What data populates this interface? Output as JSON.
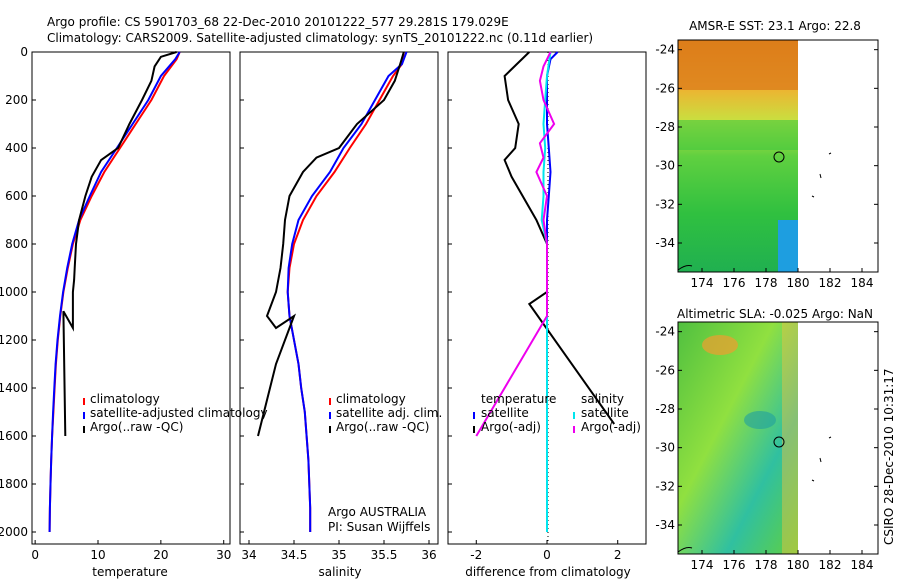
{
  "header": {
    "line1": "Argo profile: CS 5901703_68 22-Dec-2010 20101222_577 29.281S 179.029E",
    "line2": "Climatology: CARS2009. Satellite-adjusted climatology: synTS_20101222.nc (0.11d earlier)"
  },
  "colors": {
    "climatology": "#ff0000",
    "satellite": "#0000ff",
    "argo": "#000000",
    "salinity_satellite": "#00e5ee",
    "salinity_argo": "#ee00ee"
  },
  "side_text": "CSIRO 28-Dec-2010 10:31:17",
  "credit": {
    "line1": "Argo AUSTRALIA",
    "line2": "PI: Susan Wijffels"
  },
  "chart_data": [
    {
      "type": "line",
      "xlabel": "temperature",
      "xlim": [
        -0.5,
        31
      ],
      "ylim": [
        2050,
        0
      ],
      "xticks": [
        0,
        10,
        20,
        30
      ],
      "yticks": [
        0,
        200,
        400,
        600,
        800,
        1000,
        1200,
        1400,
        1600,
        1800,
        2000
      ],
      "legend": {
        "position": "lower-right",
        "entries": [
          "climatology",
          "satellite-adjusted climatology",
          "Argo(..raw -QC)"
        ]
      },
      "series": [
        {
          "name": "climatology",
          "color": "#ff0000",
          "points": [
            [
              23,
              0
            ],
            [
              22.5,
              30
            ],
            [
              20.5,
              100
            ],
            [
              18.5,
              200
            ],
            [
              16,
              300
            ],
            [
              13.5,
              400
            ],
            [
              11,
              500
            ],
            [
              9,
              600
            ],
            [
              7.2,
              700
            ],
            [
              6,
              800
            ],
            [
              5.2,
              900
            ],
            [
              4.5,
              1000
            ],
            [
              4,
              1100
            ],
            [
              3.6,
              1200
            ],
            [
              3.3,
              1300
            ],
            [
              3.1,
              1400
            ],
            [
              2.9,
              1500
            ],
            [
              2.7,
              1600
            ],
            [
              2.55,
              1700
            ],
            [
              2.45,
              1800
            ],
            [
              2.35,
              1900
            ],
            [
              2.3,
              2000
            ]
          ]
        },
        {
          "name": "satellite-adjusted climatology",
          "color": "#0000ff",
          "points": [
            [
              23,
              0
            ],
            [
              22.3,
              30
            ],
            [
              20,
              100
            ],
            [
              18,
              200
            ],
            [
              15.5,
              300
            ],
            [
              13,
              400
            ],
            [
              10.5,
              500
            ],
            [
              8.7,
              600
            ],
            [
              7,
              700
            ],
            [
              5.9,
              800
            ],
            [
              5.1,
              900
            ],
            [
              4.45,
              1000
            ],
            [
              3.95,
              1100
            ],
            [
              3.55,
              1200
            ],
            [
              3.25,
              1300
            ],
            [
              3.05,
              1400
            ],
            [
              2.85,
              1500
            ],
            [
              2.7,
              1600
            ],
            [
              2.55,
              1700
            ],
            [
              2.45,
              1800
            ],
            [
              2.35,
              1900
            ],
            [
              2.3,
              2000
            ]
          ]
        },
        {
          "name": "Argo(..raw -QC)",
          "color": "#000000",
          "points": [
            [
              22.5,
              0
            ],
            [
              20,
              20
            ],
            [
              19,
              60
            ],
            [
              18.5,
              120
            ],
            [
              17,
              200
            ],
            [
              15,
              300
            ],
            [
              13.2,
              400
            ],
            [
              10.5,
              450
            ],
            [
              9,
              520
            ],
            [
              8,
              600
            ],
            [
              7,
              700
            ],
            [
              6.5,
              800
            ],
            [
              6.3,
              900
            ],
            [
              6.2,
              950
            ],
            [
              6,
              1000
            ],
            [
              6,
              1150
            ],
            [
              4.5,
              1080
            ],
            [
              4.8,
              1600
            ]
          ]
        }
      ]
    },
    {
      "type": "line",
      "xlabel": "salinity",
      "xlim": [
        33.9,
        36.1
      ],
      "ylim": [
        2050,
        0
      ],
      "xticks": [
        34,
        34.5,
        35,
        35.5,
        36
      ],
      "legend": {
        "position": "lower-right",
        "entries": [
          "climatology",
          "satellite adj. clim.",
          "Argo(..raw -QC)"
        ]
      },
      "series": [
        {
          "name": "climatology",
          "color": "#ff0000",
          "points": [
            [
              35.72,
              0
            ],
            [
              35.7,
              50
            ],
            [
              35.6,
              100
            ],
            [
              35.45,
              200
            ],
            [
              35.3,
              300
            ],
            [
              35.12,
              400
            ],
            [
              34.95,
              500
            ],
            [
              34.75,
              600
            ],
            [
              34.6,
              700
            ],
            [
              34.5,
              800
            ],
            [
              34.45,
              900
            ],
            [
              34.43,
              1000
            ],
            [
              34.45,
              1100
            ],
            [
              34.5,
              1200
            ],
            [
              34.55,
              1300
            ],
            [
              34.58,
              1400
            ],
            [
              34.62,
              1500
            ],
            [
              34.64,
              1600
            ],
            [
              34.66,
              1700
            ],
            [
              34.67,
              1800
            ],
            [
              34.68,
              1900
            ],
            [
              34.68,
              2000
            ]
          ]
        },
        {
          "name": "satellite adj. clim.",
          "color": "#0000ff",
          "points": [
            [
              35.75,
              0
            ],
            [
              35.7,
              50
            ],
            [
              35.55,
              100
            ],
            [
              35.4,
              200
            ],
            [
              35.25,
              300
            ],
            [
              35.05,
              400
            ],
            [
              34.9,
              500
            ],
            [
              34.7,
              600
            ],
            [
              34.55,
              700
            ],
            [
              34.48,
              800
            ],
            [
              34.44,
              900
            ],
            [
              34.43,
              1000
            ],
            [
              34.45,
              1100
            ],
            [
              34.5,
              1200
            ],
            [
              34.55,
              1300
            ],
            [
              34.58,
              1400
            ],
            [
              34.62,
              1500
            ],
            [
              34.64,
              1600
            ],
            [
              34.66,
              1700
            ],
            [
              34.67,
              1800
            ],
            [
              34.68,
              1900
            ],
            [
              34.68,
              2000
            ]
          ]
        },
        {
          "name": "Argo(..raw -QC)",
          "color": "#000000",
          "points": [
            [
              35.72,
              0
            ],
            [
              35.68,
              50
            ],
            [
              35.62,
              120
            ],
            [
              35.5,
              200
            ],
            [
              35.2,
              300
            ],
            [
              35,
              400
            ],
            [
              34.75,
              440
            ],
            [
              34.6,
              500
            ],
            [
              34.45,
              600
            ],
            [
              34.4,
              700
            ],
            [
              34.38,
              800
            ],
            [
              34.35,
              900
            ],
            [
              34.3,
              1000
            ],
            [
              34.2,
              1100
            ],
            [
              34.3,
              1150
            ],
            [
              34.5,
              1100
            ],
            [
              34.3,
              1300
            ],
            [
              34.2,
              1450
            ],
            [
              34.1,
              1600
            ]
          ]
        }
      ]
    },
    {
      "type": "line",
      "xlabel": "difference from climatology",
      "xlim": [
        -2.8,
        2.8
      ],
      "ylim": [
        2050,
        0
      ],
      "xticks": [
        -2,
        0,
        2
      ],
      "legend": {
        "position": "lower-center",
        "entries": [
          "temperature",
          "satellite",
          "Argo(-adj)",
          "salinity",
          "satellite",
          "Argo(-adj)"
        ]
      },
      "series": [
        {
          "name": "temperature satellite",
          "color": "#0000ff",
          "points": [
            [
              0.3,
              0
            ],
            [
              0.1,
              30
            ],
            [
              0,
              100
            ],
            [
              0,
              200
            ],
            [
              0,
              300
            ],
            [
              0.05,
              400
            ],
            [
              0.1,
              500
            ],
            [
              0.05,
              600
            ],
            [
              0,
              700
            ],
            [
              0,
              800
            ],
            [
              0,
              1000
            ],
            [
              0,
              1200
            ],
            [
              0,
              1400
            ],
            [
              0,
              1600
            ],
            [
              0,
              1800
            ],
            [
              0,
              2000
            ]
          ]
        },
        {
          "name": "temperature Argo(-adj)",
          "color": "#000000",
          "points": [
            [
              -0.5,
              0
            ],
            [
              -1.2,
              100
            ],
            [
              -1.1,
              200
            ],
            [
              -0.8,
              300
            ],
            [
              -0.9,
              400
            ],
            [
              -1.2,
              450
            ],
            [
              -1,
              520
            ],
            [
              -0.3,
              700
            ],
            [
              0,
              800
            ],
            [
              0,
              1000
            ],
            [
              -0.5,
              1050
            ],
            [
              1.9,
              1550
            ]
          ]
        },
        {
          "name": "salinity satellite",
          "color": "#00e5ee",
          "points": [
            [
              0.1,
              0
            ],
            [
              0,
              100
            ],
            [
              -0.05,
              200
            ],
            [
              -0.1,
              300
            ],
            [
              -0.05,
              400
            ],
            [
              -0.1,
              500
            ],
            [
              -0.1,
              600
            ],
            [
              -0.15,
              700
            ],
            [
              0,
              800
            ],
            [
              0,
              1000
            ],
            [
              0,
              1200
            ],
            [
              0,
              1400
            ],
            [
              0,
              1600
            ],
            [
              0,
              1800
            ],
            [
              0,
              2000
            ]
          ]
        },
        {
          "name": "salinity Argo(-adj)",
          "color": "#ee00ee",
          "points": [
            [
              0.1,
              0
            ],
            [
              -0.1,
              60
            ],
            [
              -0.2,
              120
            ],
            [
              -0.1,
              200
            ],
            [
              0.2,
              300
            ],
            [
              -0.2,
              380
            ],
            [
              -0.1,
              440
            ],
            [
              -0.3,
              500
            ],
            [
              0,
              600
            ],
            [
              -0.1,
              700
            ],
            [
              0,
              800
            ],
            [
              0,
              1100
            ],
            [
              -2,
              1600
            ]
          ]
        }
      ]
    },
    {
      "type": "heatmap",
      "title": "AMSR-E SST: 23.1 Argo: 22.8",
      "xlim": [
        172.5,
        185
      ],
      "ylim": [
        -35.5,
        -23.5
      ],
      "xticks": [
        174,
        176,
        178,
        180,
        182,
        184
      ],
      "yticks": [
        -24,
        -26,
        -28,
        -30,
        -32,
        -34
      ]
    },
    {
      "type": "heatmap",
      "title": "Altimetric SLA: -0.025 Argo: NaN",
      "xlim": [
        172.5,
        185
      ],
      "ylim": [
        -35.5,
        -23.5
      ],
      "xticks": [
        174,
        176,
        178,
        180,
        182,
        184
      ],
      "yticks": [
        -24,
        -26,
        -28,
        -30,
        -32,
        -34
      ]
    }
  ]
}
